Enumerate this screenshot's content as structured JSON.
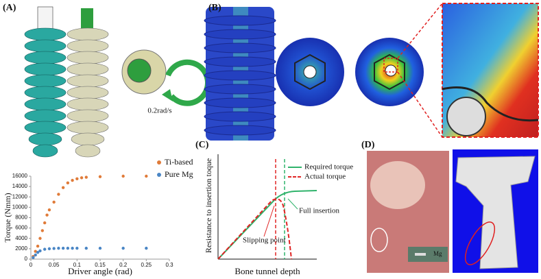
{
  "panels": [
    "(A)",
    "(B)",
    "(C)",
    "(D)"
  ],
  "rotation_label": "0.2rad/s",
  "inset_label": "Mg",
  "chart_data": {
    "type": "scatter",
    "x_label": "Driver angle (rad)",
    "y_label": "Torque (Nmm)",
    "xlim": [
      0,
      0.3
    ],
    "ylim": [
      0,
      16000
    ],
    "xticks": [
      0,
      0.05,
      0.1,
      0.15,
      0.2,
      0.25,
      0.3
    ],
    "yticks": [
      0,
      2000,
      4000,
      6000,
      8000,
      10000,
      12000,
      14000,
      16000
    ],
    "legend": "upper right",
    "series": [
      {
        "name": "Ti-based",
        "color": "#e07b39",
        "x": [
          0.005,
          0.01,
          0.015,
          0.02,
          0.025,
          0.03,
          0.035,
          0.04,
          0.05,
          0.06,
          0.07,
          0.08,
          0.09,
          0.1,
          0.11,
          0.12,
          0.15,
          0.2,
          0.25
        ],
        "values": [
          500,
          1500,
          2500,
          4000,
          5500,
          7000,
          8500,
          9500,
          11000,
          12500,
          13800,
          14700,
          15200,
          15500,
          15700,
          15800,
          15900,
          16000,
          16000
        ]
      },
      {
        "name": "Pure Mg",
        "color": "#4a86c5",
        "x": [
          0.005,
          0.01,
          0.015,
          0.02,
          0.03,
          0.04,
          0.05,
          0.06,
          0.07,
          0.08,
          0.09,
          0.1,
          0.12,
          0.15,
          0.2,
          0.25
        ],
        "values": [
          300,
          800,
          1300,
          1600,
          1900,
          2000,
          2050,
          2100,
          2100,
          2100,
          2100,
          2100,
          2100,
          2100,
          2100,
          2100
        ]
      }
    ]
  },
  "schematic": {
    "y_label": "Resistance to insertion toque",
    "x_label": "Bone tunnel depth",
    "legend": [
      {
        "name": "Required torque",
        "color": "#2fb36b"
      },
      {
        "name": "Actual torque",
        "color": "#e02424"
      }
    ],
    "annotations": [
      "Full insertion",
      "Slipping point"
    ]
  }
}
